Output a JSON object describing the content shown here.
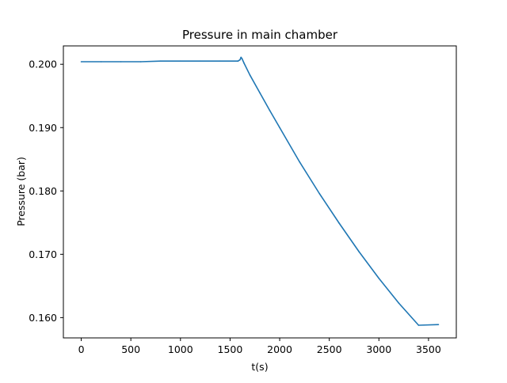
{
  "chart_data": {
    "type": "line",
    "title": "Pressure in main chamber",
    "xlabel": "t(s)",
    "ylabel": "Pressure (bar)",
    "xlim": [
      -180,
      3780
    ],
    "ylim": [
      0.1568,
      0.2029
    ],
    "xticks": [
      0,
      500,
      1000,
      1500,
      2000,
      2500,
      3000,
      3500
    ],
    "yticks": [
      0.16,
      0.17,
      0.18,
      0.19,
      0.2
    ],
    "xtick_labels": [
      "0",
      "500",
      "1000",
      "1500",
      "2000",
      "2500",
      "3000",
      "3500"
    ],
    "ytick_labels": [
      "0.160",
      "0.170",
      "0.180",
      "0.190",
      "0.200"
    ],
    "grid": false,
    "legend": "none",
    "series": [
      {
        "color": "#1f77b4",
        "x": [
          0,
          200,
          400,
          600,
          800,
          1000,
          1200,
          1400,
          1580,
          1600,
          1610,
          1620,
          1640,
          1700,
          1800,
          1900,
          2000,
          2200,
          2400,
          2600,
          2800,
          3000,
          3200,
          3400,
          3600
        ],
        "y": [
          0.2004,
          0.2004,
          0.2004,
          0.2004,
          0.2005,
          0.2005,
          0.2005,
          0.2005,
          0.2005,
          0.2007,
          0.2011,
          0.2009,
          0.2002,
          0.1983,
          0.1955,
          0.1927,
          0.19,
          0.1846,
          0.1796,
          0.1749,
          0.1704,
          0.1662,
          0.1623,
          0.1588,
          0.1589
        ]
      }
    ]
  }
}
